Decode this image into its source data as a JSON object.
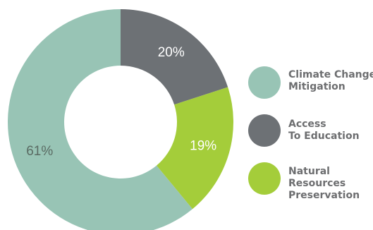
{
  "chart_data": {
    "type": "pie",
    "style": "donut",
    "title": "",
    "slices": [
      {
        "label": "Access To Education",
        "value": 20,
        "display": "20%",
        "color": "#6d7175",
        "label_color": "#ffffff"
      },
      {
        "label": "Natural Resources Preservation",
        "value": 19,
        "display": "19%",
        "color": "#a4cd3a",
        "label_color": "#ffffff"
      },
      {
        "label": "Climate Change Mitigation",
        "value": 61,
        "display": "61%",
        "color": "#98c4b5",
        "label_color": "#5a6b63"
      }
    ],
    "legend": {
      "placement": "right",
      "items": [
        {
          "lines": [
            "Climate Change",
            "Mitigation"
          ],
          "color": "#98c4b5"
        },
        {
          "lines": [
            "Access",
            "To Education"
          ],
          "color": "#6d7175"
        },
        {
          "lines": [
            "Natural",
            "Resources",
            "Preservation"
          ],
          "color": "#a4cd3a"
        }
      ]
    }
  }
}
